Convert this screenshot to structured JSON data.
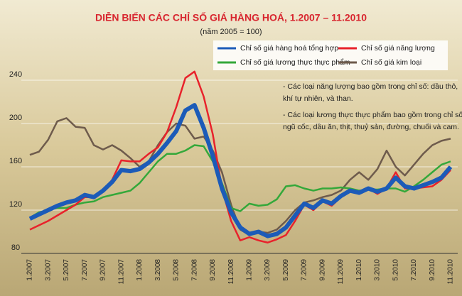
{
  "chart_data": {
    "type": "line",
    "title": "DIỄN BIẾN CÁC CHỈ SỐ GIÁ HÀNG HOÁ, 1.2007 – 11.2010",
    "subtitle": "(năm 2005 = 100)",
    "annotations": [
      "- Các loại năng lượng bao gồm trong chỉ số: dầu thô,",
      "khí tự nhiên, và than.",
      "- Các loại lương thực thực phẩm bao gồm trong chỉ số:",
      "ngũ cốc, dầu ăn, thịt, thuỷ sản, đường, chuối và cam."
    ],
    "categories": [
      "1.2007",
      null,
      "3.2007",
      null,
      "5.2007",
      null,
      "7.2007",
      null,
      "9.2007",
      null,
      "11.2007",
      null,
      "1.2008",
      null,
      "3.2008",
      null,
      "5.2008",
      null,
      "7.2008",
      null,
      "9.2008",
      null,
      "11.2008",
      null,
      "1.2009",
      null,
      "3.2009",
      null,
      "5.2009",
      null,
      "7.2009",
      null,
      "9.2009",
      null,
      "11.2009",
      null,
      "1.2010",
      null,
      "3.2010",
      null,
      "5.2010",
      null,
      "7.2010",
      null,
      "9.2010",
      null,
      "11.2010"
    ],
    "series": [
      {
        "name": "Chỉ số giá hàng hoá tổng hợp",
        "color": "#1c5bb8",
        "width": 6,
        "values": [
          112,
          116,
          120,
          124,
          127,
          129,
          134,
          132,
          138,
          146,
          157,
          156,
          158,
          164,
          172,
          182,
          193,
          212,
          217,
          196,
          170,
          140,
          118,
          104,
          98,
          100,
          96,
          98,
          104,
          115,
          126,
          122,
          129,
          126,
          133,
          138,
          136,
          140,
          137,
          140,
          150,
          142,
          140,
          143,
          146,
          150,
          160
        ]
      },
      {
        "name": "Chỉ số giá năng lượng",
        "color": "#e8222b",
        "width": 2.5,
        "values": [
          102,
          106,
          110,
          115,
          120,
          125,
          132,
          132,
          138,
          148,
          166,
          165,
          165,
          172,
          178,
          192,
          215,
          242,
          248,
          225,
          190,
          140,
          110,
          92,
          95,
          92,
          90,
          93,
          97,
          110,
          125,
          120,
          128,
          124,
          132,
          138,
          137,
          140,
          135,
          140,
          155,
          140,
          140,
          141,
          142,
          148,
          157
        ]
      },
      {
        "name": "Chỉ số giá lương thực thực phẩm",
        "color": "#34a83a",
        "width": 2.5,
        "values": [
          113,
          118,
          120,
          122,
          122,
          125,
          127,
          128,
          132,
          134,
          136,
          138,
          145,
          155,
          165,
          172,
          172,
          175,
          180,
          179,
          165,
          145,
          122,
          119,
          126,
          124,
          125,
          130,
          142,
          143,
          140,
          138,
          140,
          140,
          141,
          140,
          138,
          139,
          139,
          140,
          140,
          137,
          142,
          148,
          155,
          162,
          165
        ]
      },
      {
        "name": "Chỉ số giá kim loại",
        "color": "#6e5b4c",
        "width": 2.5,
        "values": [
          171,
          174,
          185,
          202,
          205,
          197,
          196,
          180,
          176,
          180,
          175,
          168,
          160,
          165,
          180,
          192,
          200,
          198,
          186,
          188,
          175,
          155,
          125,
          102,
          97,
          100,
          99,
          102,
          110,
          120,
          127,
          129,
          132,
          134,
          138,
          148,
          155,
          148,
          158,
          175,
          160,
          152,
          162,
          172,
          180,
          184,
          186
        ]
      }
    ],
    "ylim": [
      80,
      280
    ],
    "yticks": [
      80,
      120,
      160,
      200,
      240
    ],
    "grid": true
  }
}
